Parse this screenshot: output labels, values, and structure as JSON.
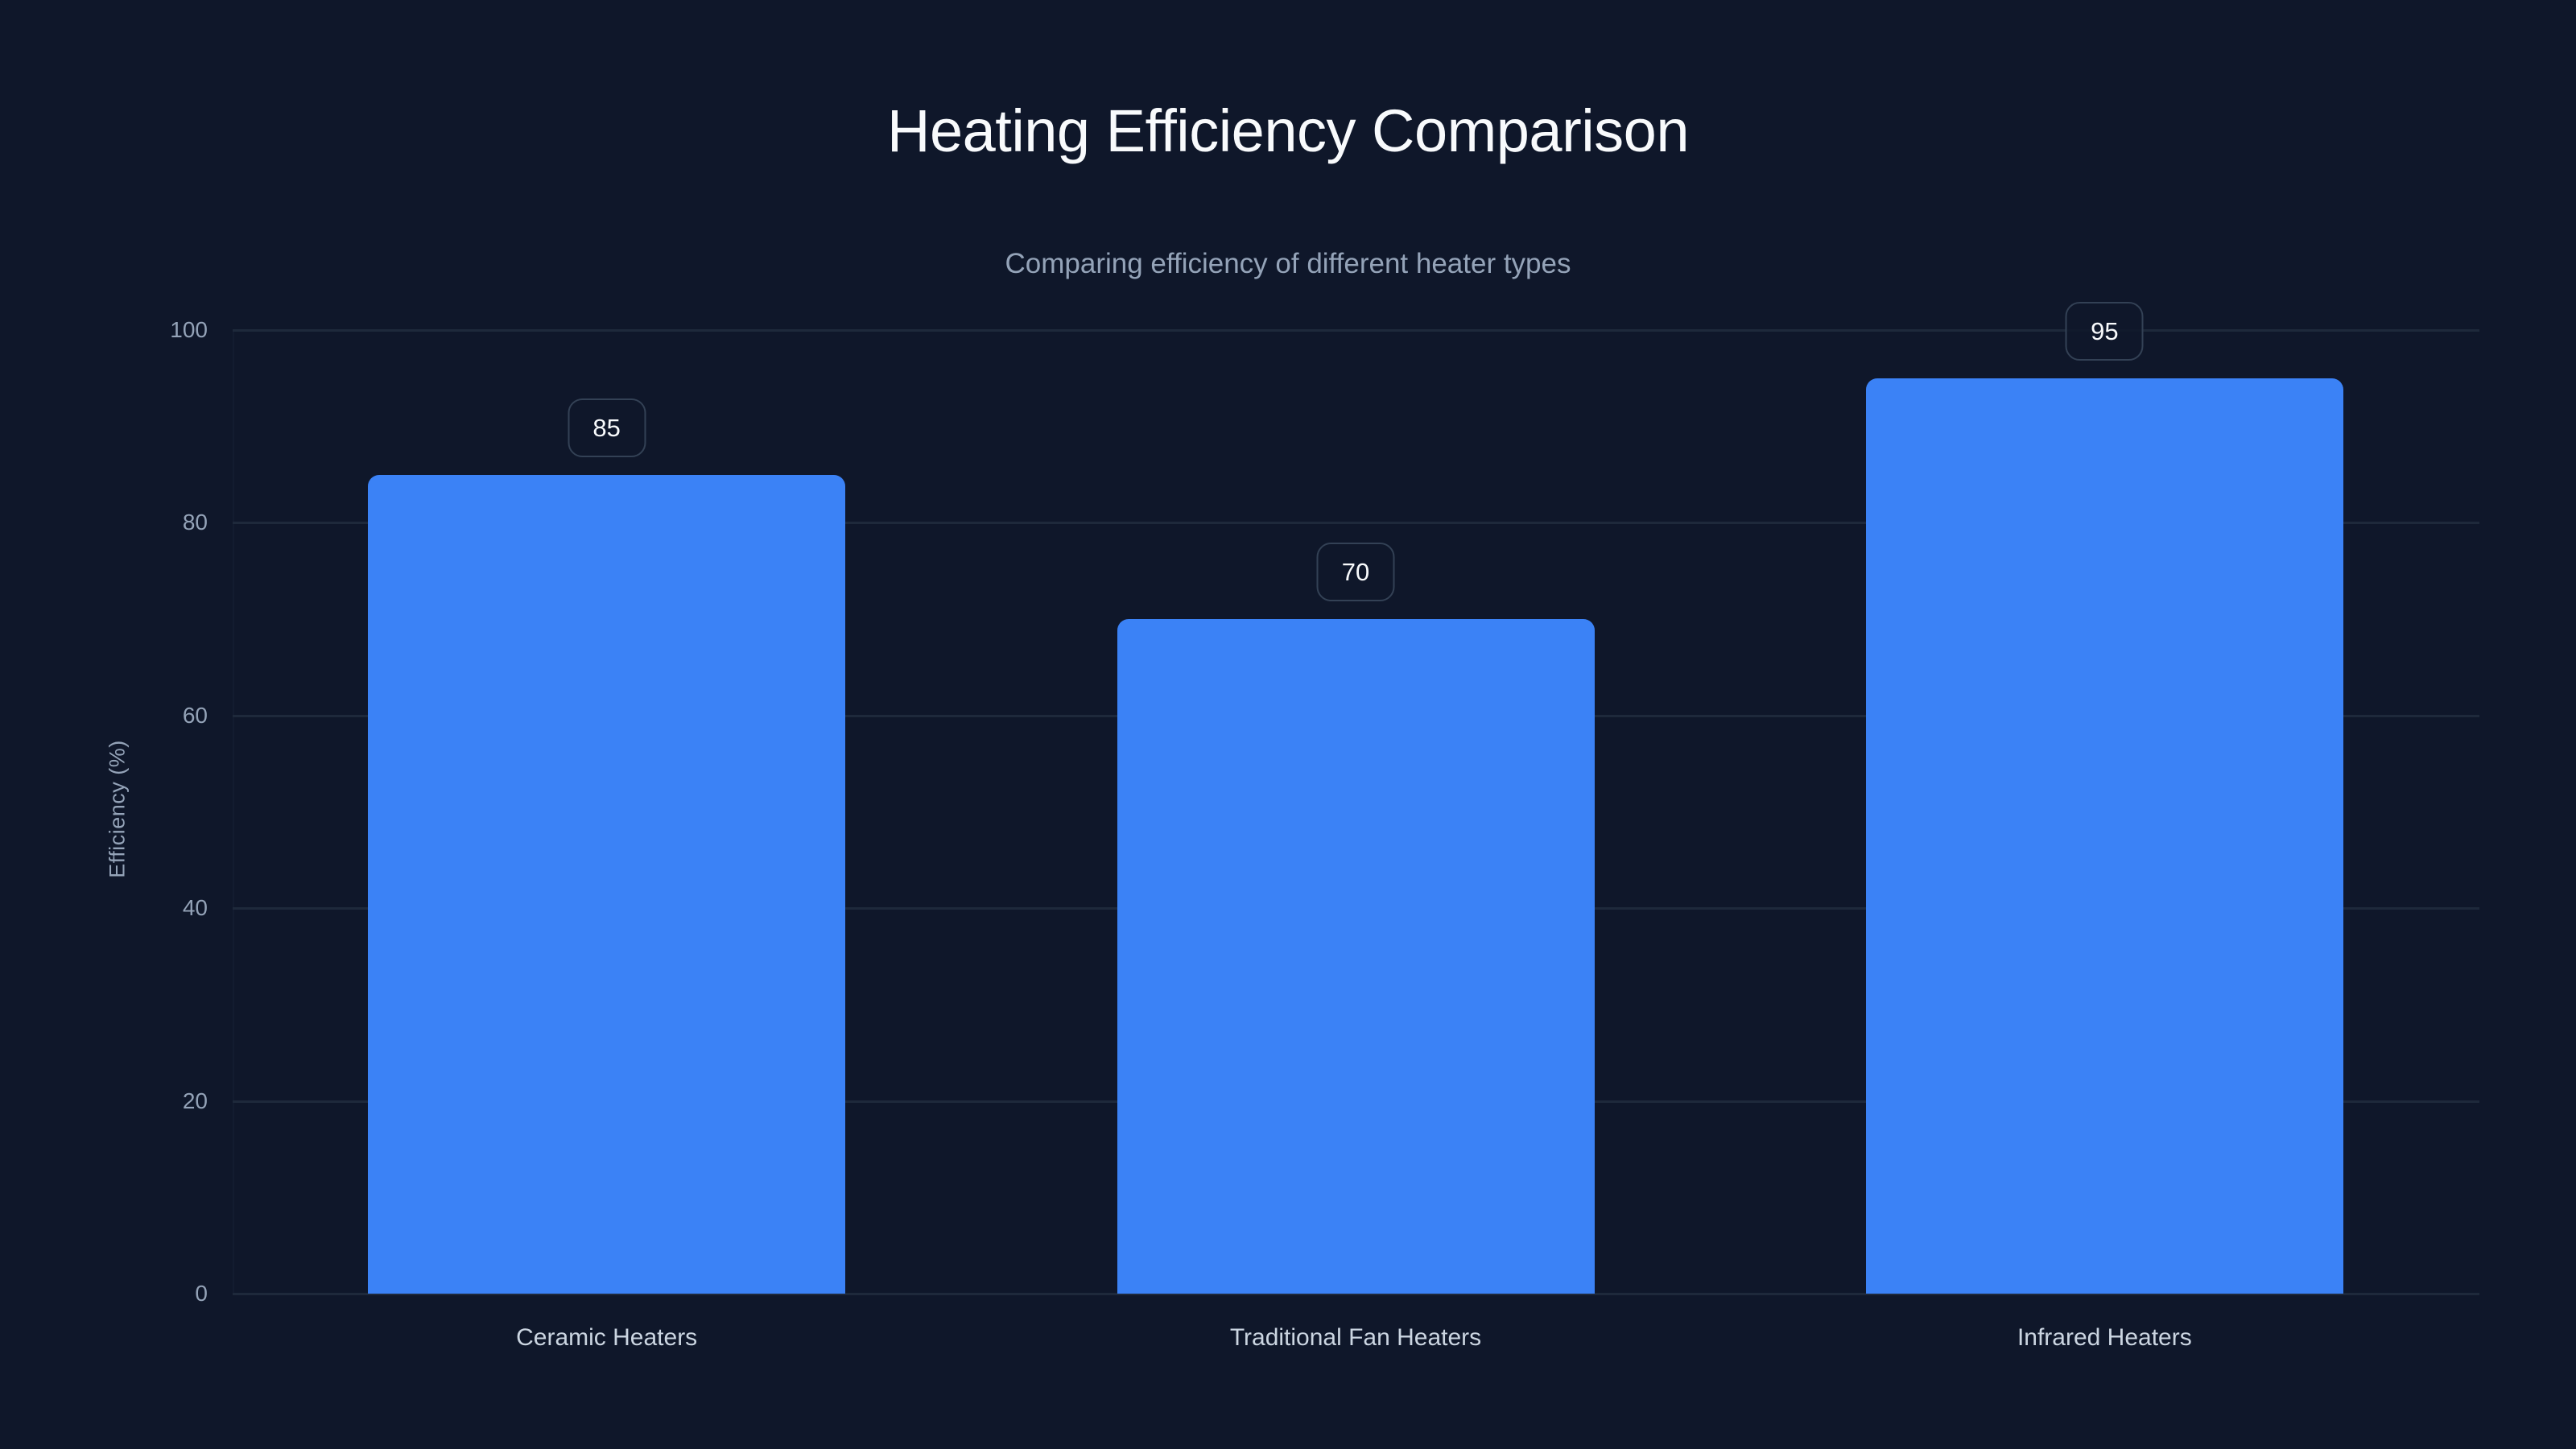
{
  "title": "Heating Efficiency Comparison",
  "subtitle": "Comparing efficiency of different heater types",
  "colors": {
    "background": "#0f172a",
    "bar": "#3b82f6",
    "gridline": "#1e293b",
    "title": "#f8fafc",
    "muted_text": "#94a3b8",
    "category_text": "#cbd5e1",
    "badge_border": "#334155"
  },
  "axes": {
    "y_label": "Efficiency (%)",
    "y_ticks": [
      "0",
      "20",
      "40",
      "60",
      "80",
      "100"
    ]
  },
  "bars": [
    {
      "category": "Ceramic Heaters",
      "value": 85,
      "value_label": "85"
    },
    {
      "category": "Traditional Fan Heaters",
      "value": 70,
      "value_label": "70"
    },
    {
      "category": "Infrared Heaters",
      "value": 95,
      "value_label": "95"
    }
  ],
  "chart_data": {
    "type": "bar",
    "title": "Heating Efficiency Comparison",
    "subtitle": "Comparing efficiency of different heater types",
    "categories": [
      "Ceramic Heaters",
      "Traditional Fan Heaters",
      "Infrared Heaters"
    ],
    "values": [
      85,
      70,
      95
    ],
    "xlabel": "",
    "ylabel": "Efficiency (%)",
    "ylim": [
      0,
      100
    ],
    "yticks": [
      0,
      20,
      40,
      60,
      80,
      100
    ],
    "grid": {
      "horizontal": true,
      "vertical": false
    },
    "data_labels": true,
    "legend": null
  }
}
